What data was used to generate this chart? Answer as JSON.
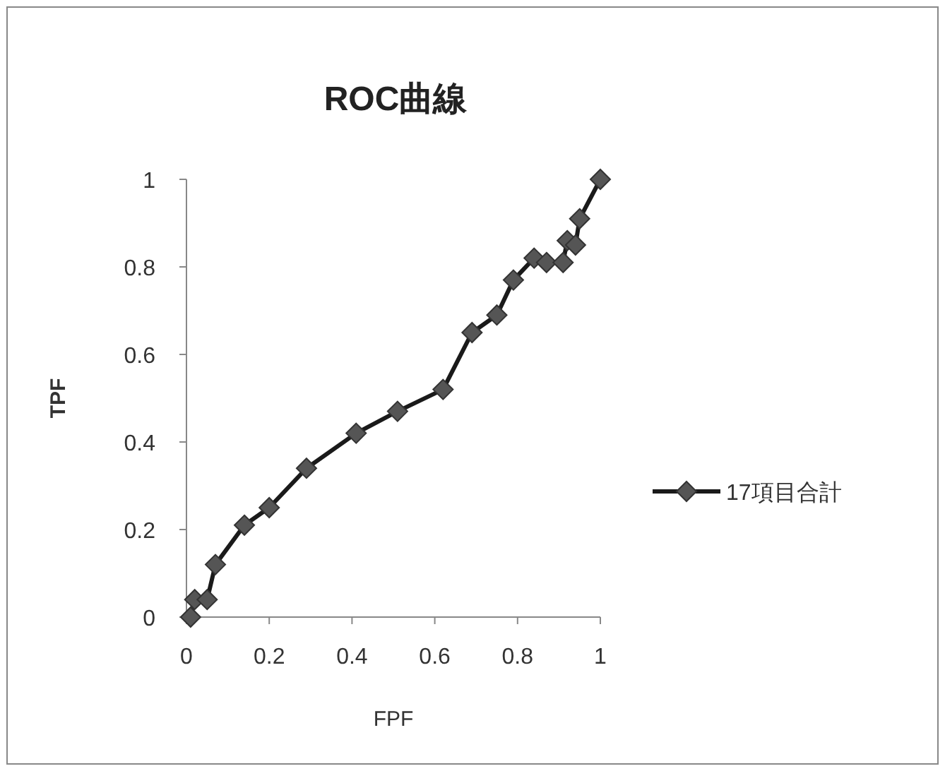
{
  "chart_data": {
    "type": "line",
    "title": "ROC曲線",
    "xlabel": "FPF",
    "ylabel": "TPF",
    "legend": "right",
    "marker": "diamond",
    "line_style": "solid",
    "xlim": [
      0,
      1
    ],
    "ylim": [
      0,
      1
    ],
    "xticks": [
      0,
      0.2,
      0.4,
      0.6,
      0.8,
      1
    ],
    "yticks": [
      0,
      0.2,
      0.4,
      0.6,
      0.8,
      1
    ],
    "series": [
      {
        "name": "17項目合計",
        "color": "#1a1a1a",
        "x": [
          0.01,
          0.02,
          0.05,
          0.07,
          0.14,
          0.2,
          0.29,
          0.41,
          0.51,
          0.62,
          0.69,
          0.75,
          0.79,
          0.84,
          0.87,
          0.91,
          0.92,
          0.94,
          0.95,
          1.0
        ],
        "values": [
          0,
          0.04,
          0.04,
          0.12,
          0.21,
          0.25,
          0.34,
          0.42,
          0.47,
          0.52,
          0.65,
          0.69,
          0.77,
          0.82,
          0.81,
          0.81,
          0.86,
          0.85,
          0.91,
          1.0
        ]
      }
    ]
  }
}
